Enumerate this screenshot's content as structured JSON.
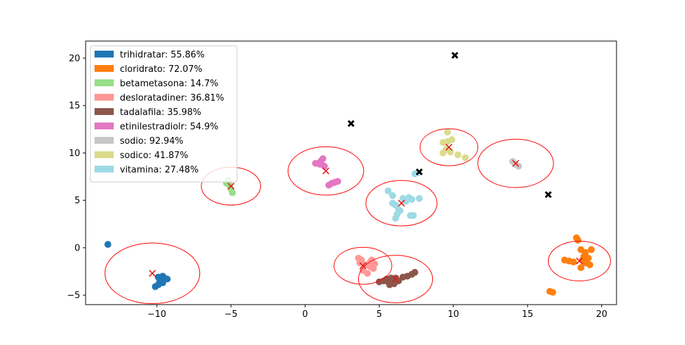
{
  "chart_data": {
    "type": "scatter",
    "title": "",
    "xlabel": "",
    "ylabel": "",
    "xlim": [
      -14.8,
      21.0
    ],
    "ylim": [
      -6.0,
      21.8
    ],
    "x_ticks": [
      -10,
      -5,
      0,
      5,
      10,
      15,
      20
    ],
    "y_ticks": [
      -5,
      0,
      5,
      10,
      15,
      20
    ],
    "x_tick_labels": [
      "−10",
      "−5",
      "0",
      "5",
      "10",
      "15",
      "20"
    ],
    "y_tick_labels": [
      "−5",
      "0",
      "5",
      "10",
      "15",
      "20"
    ],
    "grid": false,
    "legend_position": "top-left",
    "legend": [
      {
        "label": "trihidratar: 55.86%",
        "color": "#1f77b4"
      },
      {
        "label": "cloridrato: 72.07%",
        "color": "#ff7f0e"
      },
      {
        "label": "betametasona: 14.7%",
        "color": "#98df8a"
      },
      {
        "label": "desloratadiner: 36.81%",
        "color": "#ff9896"
      },
      {
        "label": "tadalafila: 35.98%",
        "color": "#8c564b"
      },
      {
        "label": "etinilestradiolr: 54.9%",
        "color": "#e377c2"
      },
      {
        "label": "sodio: 92.94%",
        "color": "#c7c7c7"
      },
      {
        "label": "sodico: 41.87%",
        "color": "#dbdb8d"
      },
      {
        "label": "vitamina: 27.48%",
        "color": "#9edae5"
      }
    ],
    "series": [
      {
        "color": "#1f77b4",
        "points": [
          [
            -13.3,
            0.35
          ],
          [
            -9.9,
            -3.1
          ],
          [
            -9.6,
            -3.0
          ],
          [
            -9.3,
            -3.3
          ],
          [
            -9.8,
            -3.5
          ],
          [
            -9.6,
            -3.7
          ],
          [
            -9.9,
            -3.9
          ],
          [
            -10.1,
            -4.1
          ],
          [
            -9.5,
            -3.2
          ]
        ]
      },
      {
        "color": "#ff7f0e",
        "points": [
          [
            18.3,
            1.05
          ],
          [
            18.4,
            0.8
          ],
          [
            17.5,
            -1.3
          ],
          [
            17.8,
            -1.4
          ],
          [
            18.1,
            -1.5
          ],
          [
            18.6,
            -0.2
          ],
          [
            18.9,
            -0.5
          ],
          [
            19.3,
            -0.2
          ],
          [
            18.8,
            -0.9
          ],
          [
            19.1,
            -1.1
          ],
          [
            18.7,
            -1.3
          ],
          [
            18.9,
            -1.6
          ],
          [
            19.2,
            -1.8
          ],
          [
            18.6,
            -2.1
          ],
          [
            18.9,
            -1.2
          ],
          [
            16.5,
            -4.6
          ],
          [
            16.7,
            -4.7
          ]
        ]
      },
      {
        "color": "#98df8a",
        "points": [
          [
            -5.2,
            7.1
          ],
          [
            -5.3,
            6.8
          ],
          [
            -5.1,
            6.6
          ],
          [
            -5.0,
            6.2
          ],
          [
            -4.9,
            5.8
          ]
        ]
      },
      {
        "color": "#ff9896",
        "points": [
          [
            3.6,
            -1.1
          ],
          [
            3.8,
            -1.3
          ],
          [
            3.7,
            -1.6
          ],
          [
            4.1,
            -1.8
          ],
          [
            4.4,
            -1.5
          ],
          [
            4.7,
            -1.7
          ],
          [
            4.4,
            -2.0
          ],
          [
            4.6,
            -2.2
          ],
          [
            3.9,
            -2.4
          ],
          [
            4.2,
            -2.7
          ],
          [
            4.5,
            -1.3
          ]
        ]
      },
      {
        "color": "#8c564b",
        "points": [
          [
            5.0,
            -3.6
          ],
          [
            5.3,
            -3.5
          ],
          [
            5.5,
            -3.3
          ],
          [
            5.6,
            -3.6
          ],
          [
            5.8,
            -3.2
          ],
          [
            6.1,
            -3.2
          ],
          [
            6.3,
            -3.5
          ],
          [
            6.6,
            -3.1
          ],
          [
            6.9,
            -3.0
          ],
          [
            7.2,
            -2.8
          ],
          [
            7.4,
            -2.6
          ],
          [
            5.7,
            -3.9
          ],
          [
            6.0,
            -3.8
          ]
        ]
      },
      {
        "color": "#e377c2",
        "points": [
          [
            0.7,
            8.9
          ],
          [
            1.0,
            8.8
          ],
          [
            1.1,
            9.2
          ],
          [
            1.2,
            9.4
          ],
          [
            1.3,
            8.6
          ],
          [
            1.6,
            6.6
          ],
          [
            1.8,
            6.8
          ],
          [
            2.0,
            6.9
          ],
          [
            2.2,
            7.0
          ],
          [
            1.0,
            9.0
          ]
        ]
      },
      {
        "color": "#c7c7c7",
        "points": [
          [
            14.0,
            9.1
          ],
          [
            14.2,
            8.8
          ],
          [
            14.4,
            8.6
          ]
        ]
      },
      {
        "color": "#dbdb8d",
        "points": [
          [
            9.3,
            10.0
          ],
          [
            9.5,
            10.4
          ],
          [
            9.6,
            11.2
          ],
          [
            9.9,
            11.4
          ],
          [
            9.6,
            12.2
          ],
          [
            9.8,
            10.1
          ],
          [
            10.3,
            9.8
          ],
          [
            10.8,
            9.5
          ],
          [
            9.3,
            11.1
          ]
        ]
      },
      {
        "color": "#9edae5",
        "points": [
          [
            5.6,
            6.0
          ],
          [
            5.9,
            5.5
          ],
          [
            5.9,
            4.7
          ],
          [
            6.1,
            4.5
          ],
          [
            6.3,
            4.0
          ],
          [
            6.2,
            3.5
          ],
          [
            6.1,
            3.1
          ],
          [
            6.4,
            3.9
          ],
          [
            6.6,
            5.2
          ],
          [
            6.8,
            4.9
          ],
          [
            7.0,
            5.3
          ],
          [
            7.2,
            5.1
          ],
          [
            7.1,
            3.4
          ],
          [
            7.3,
            3.4
          ],
          [
            7.7,
            5.2
          ],
          [
            7.4,
            7.8
          ],
          [
            7.6,
            7.9
          ]
        ]
      }
    ],
    "outliers": [
      [
        10.1,
        20.3
      ],
      [
        3.1,
        13.1
      ],
      [
        7.7,
        8.0
      ],
      [
        16.4,
        5.6
      ]
    ],
    "centroids": [
      {
        "x": -10.3,
        "y": -2.7,
        "rx": 3.2,
        "ry": 3.2
      },
      {
        "x": 18.5,
        "y": -1.4,
        "rx": 2.1,
        "ry": 2.1
      },
      {
        "x": -5.0,
        "y": 6.5,
        "rx": 2.0,
        "ry": 2.0
      },
      {
        "x": 3.9,
        "y": -1.9,
        "rx": 1.95,
        "ry": 1.95
      },
      {
        "x": 6.1,
        "y": -3.3,
        "rx": 2.5,
        "ry": 2.5
      },
      {
        "x": 1.4,
        "y": 8.1,
        "rx": 2.55,
        "ry": 2.55
      },
      {
        "x": 14.2,
        "y": 8.9,
        "rx": 2.55,
        "ry": 2.55
      },
      {
        "x": 9.7,
        "y": 10.6,
        "rx": 1.95,
        "ry": 1.95
      },
      {
        "x": 6.5,
        "y": 4.7,
        "rx": 2.4,
        "ry": 2.4
      }
    ]
  }
}
